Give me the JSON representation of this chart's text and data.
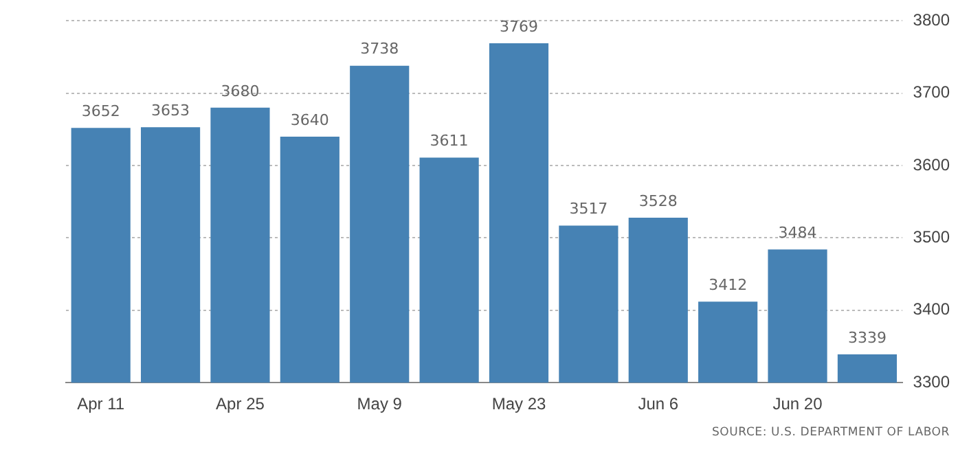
{
  "chart_data": {
    "type": "bar",
    "categories": [
      "Apr 11",
      null,
      "Apr 25",
      null,
      "May 9",
      null,
      "May 23",
      null,
      "Jun 6",
      null,
      "Jun 20",
      null
    ],
    "values": [
      3652,
      3653,
      3680,
      3640,
      3738,
      3611,
      3769,
      3517,
      3528,
      3412,
      3484,
      3339
    ],
    "color": "#4682b4",
    "ylim": [
      3300,
      3800
    ],
    "yticks": [
      3300,
      3400,
      3500,
      3600,
      3700,
      3800
    ],
    "grid": "y",
    "data_labels": true,
    "annotations": [
      "SOURCE: U.S. DEPARTMENT OF LABOR"
    ]
  }
}
